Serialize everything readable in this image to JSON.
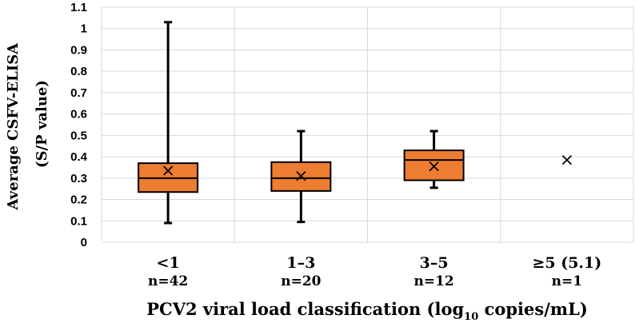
{
  "chart_data": {
    "type": "boxplot",
    "title": "",
    "ylabel_line1": "Average CSFV-ELISA",
    "ylabel_line2": "(S/P value)",
    "xlabel_main": "PCV2 viral load classification (log",
    "xlabel_sub": "10",
    "xlabel_end": " copies/mL)",
    "ylim": [
      0,
      1.1
    ],
    "yticks": [
      "0",
      "0.1",
      "0.2",
      "0.3",
      "0.4",
      "0.5",
      "0.6",
      "0.7",
      "0.8",
      "0.9",
      "1",
      "1.1"
    ],
    "grid": true,
    "box_color": "#ED7D31",
    "categories": [
      {
        "label": "<1",
        "n": "n=42",
        "min": 0.09,
        "q1": 0.235,
        "median": 0.3,
        "q3": 0.37,
        "max": 1.03,
        "mean": 0.335
      },
      {
        "label": "1–3",
        "n": "n=20",
        "min": 0.095,
        "q1": 0.24,
        "median": 0.3,
        "q3": 0.375,
        "max": 0.52,
        "mean": 0.31
      },
      {
        "label": "3–5",
        "n": "n=12",
        "min": 0.255,
        "q1": 0.29,
        "median": 0.385,
        "q3": 0.43,
        "max": 0.52,
        "mean": 0.355
      },
      {
        "label": "≥5 (5.1)",
        "n": "n=1",
        "min": null,
        "q1": null,
        "median": null,
        "q3": null,
        "max": null,
        "mean": 0.385
      }
    ]
  }
}
